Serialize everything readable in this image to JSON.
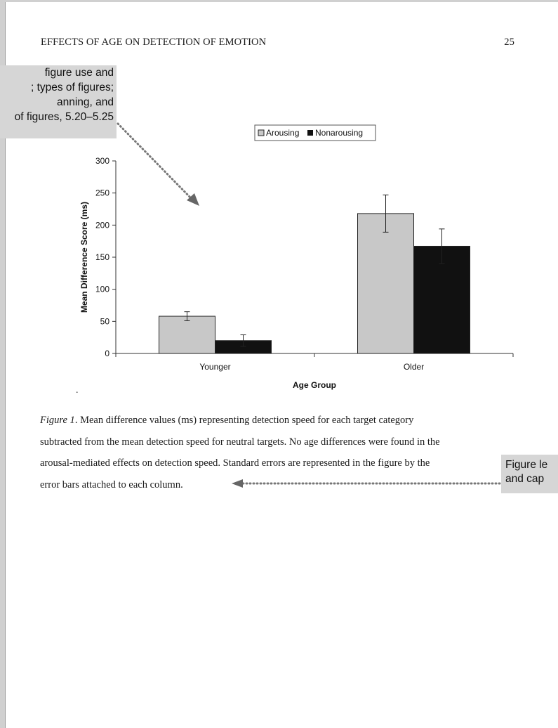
{
  "page": {
    "running_head": "EFFECTS OF AGE ON DETECTION OF EMOTION",
    "page_number": "25"
  },
  "callouts": {
    "left": [
      "figure use and",
      "; types of figures;",
      "anning, and",
      "of figures, 5.20–5.25"
    ],
    "right": [
      "Figure le",
      "and cap"
    ]
  },
  "stray_mark": ".",
  "chart_data": {
    "type": "bar",
    "categories": [
      "Younger",
      "Older"
    ],
    "series": [
      {
        "name": "Arousing",
        "color": "#c8c8c8",
        "values": [
          58,
          218
        ],
        "errors": [
          7,
          29
        ]
      },
      {
        "name": "Nonarousing",
        "color": "#111111",
        "values": [
          20,
          167
        ],
        "errors": [
          9,
          27
        ]
      }
    ],
    "xlabel": "Age Group",
    "ylabel": "Mean Difference Score (ms)",
    "ylim": [
      0,
      300
    ],
    "yticks": [
      "0",
      "50",
      "100",
      "150",
      "200",
      "250",
      "300"
    ],
    "legend_position": "top-center",
    "grid": false,
    "error_bars": true
  },
  "caption": {
    "figure_label": "Figure 1",
    "lines": [
      ". Mean difference values (ms) representing detection speed for each target category",
      "subtracted from the mean detection speed for neutral targets. No age differences were found in the",
      "arousal-mediated effects on detection speed. Standard errors are represented in the figure by the",
      "error bars attached to each column."
    ]
  }
}
